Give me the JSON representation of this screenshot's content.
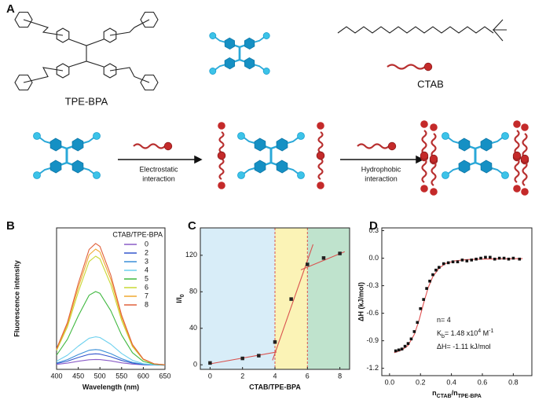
{
  "panel_a": {
    "label": "A",
    "molecule": "TPE-BPA",
    "surfactant": "CTAB",
    "step1": [
      "Electrostatic",
      "interaction"
    ],
    "step2": [
      "Hydrophobic",
      "interaction"
    ]
  },
  "chart_data": [
    {
      "type": "line",
      "panel": "B",
      "xlabel": "Wavelength (nm)",
      "ylabel": "Fluorescence intensity",
      "legend_title": "CTAB/TPE-BPA",
      "x": [
        400,
        425,
        450,
        475,
        490,
        500,
        525,
        550,
        575,
        600,
        625,
        650
      ],
      "series": [
        {
          "name": "0",
          "color": "#8a5cc7",
          "values": [
            3.5,
            4.4,
            5.7,
            6.8,
            7,
            6.9,
            6,
            4.6,
            3.7,
            3.2,
            3,
            3
          ]
        },
        {
          "name": "2",
          "color": "#3355cc",
          "values": [
            4.1,
            5.8,
            8.4,
            10.6,
            11,
            10.8,
            8.9,
            6.3,
            4.4,
            3.4,
            3.1,
            3
          ]
        },
        {
          "name": "3",
          "color": "#3a8fd8",
          "values": [
            4.5,
            6.9,
            10.4,
            13.5,
            14,
            13.7,
            11.1,
            7.5,
            4.9,
            3.6,
            3.1,
            3
          ]
        },
        {
          "name": "4",
          "color": "#6cd0ee",
          "values": [
            5.7,
            10,
            16.4,
            22,
            23,
            22.5,
            17.8,
            11.2,
            6.4,
            4,
            3.2,
            3
          ]
        },
        {
          "name": "5",
          "color": "#3fb83f",
          "values": [
            10,
            21.2,
            37.8,
            52.4,
            55,
            53.7,
            41.5,
            24.3,
            11.8,
            5.6,
            3.6,
            3.1
          ]
        },
        {
          "name": "6",
          "color": "#c8d834",
          "values": [
            13.4,
            30,
            54.6,
            76.2,
            80,
            78.1,
            60,
            34.6,
            16.1,
            6.9,
            3.8,
            3.2
          ]
        },
        {
          "name": "7",
          "color": "#f0a830",
          "values": [
            14.1,
            31.7,
            57.9,
            80.9,
            85,
            83,
            63.7,
            36.6,
            16.9,
            7.1,
            3.9,
            3.2
          ]
        },
        {
          "name": "8",
          "color": "#e0603a",
          "values": [
            14.6,
            33.1,
            60.6,
            84.7,
            89,
            86.9,
            66.6,
            38.3,
            17.6,
            7.3,
            3.9,
            3.2
          ]
        }
      ],
      "xlim": [
        400,
        650
      ],
      "xticks": [
        400,
        450,
        500,
        550,
        600,
        650
      ],
      "ylim": [
        0,
        100
      ]
    },
    {
      "type": "scatter",
      "panel": "C",
      "xlabel": "CTAB/TPE-BPA",
      "ylabel": [
        {
          "text": "I/I"
        },
        {
          "text": "0",
          "script": "sub"
        }
      ],
      "x": [
        0,
        2,
        3,
        4,
        5,
        6,
        7,
        8
      ],
      "values": [
        2,
        7,
        10,
        25,
        72,
        110,
        117,
        122
      ],
      "color": "#222222",
      "xlim": [
        -0.6,
        8.6
      ],
      "ylim": [
        -5,
        150
      ],
      "xticks": [
        0,
        2,
        4,
        6,
        8
      ],
      "yticks": [
        0,
        40,
        80,
        120
      ],
      "regions": [
        {
          "x": [
            -0.6,
            4
          ],
          "color": "#d8edf8"
        },
        {
          "x": [
            4,
            6
          ],
          "color": "#fbf3b6"
        },
        {
          "x": [
            6,
            8.6
          ],
          "color": "#bfe3cd"
        }
      ],
      "dividers": [
        4,
        6
      ],
      "fit_color": "#d9534f",
      "fits": [
        {
          "x": [
            0,
            4.1
          ],
          "values": [
            1,
            14
          ]
        },
        {
          "x": [
            3.85,
            6.35
          ],
          "values": [
            5,
            132
          ]
        },
        {
          "x": [
            5.6,
            8.3
          ],
          "values": [
            104,
            124
          ]
        }
      ]
    },
    {
      "type": "scatter",
      "panel": "D",
      "xlabel": [
        {
          "text": "n"
        },
        {
          "text": "CTAB",
          "script": "sub"
        },
        {
          "text": "/n"
        },
        {
          "text": "TPE-BPA",
          "script": "sub"
        }
      ],
      "ylabel": "ΔH (kJ/mol)",
      "x": [
        0.04,
        0.06,
        0.08,
        0.1,
        0.12,
        0.14,
        0.16,
        0.18,
        0.2,
        0.22,
        0.24,
        0.26,
        0.28,
        0.3,
        0.32,
        0.35,
        0.38,
        0.41,
        0.44,
        0.47,
        0.5,
        0.53,
        0.56,
        0.59,
        0.62,
        0.65,
        0.68,
        0.71,
        0.74,
        0.77,
        0.8,
        0.84
      ],
      "values": [
        -1.01,
        -1.0,
        -0.99,
        -0.96,
        -0.93,
        -0.88,
        -0.8,
        -0.7,
        -0.55,
        -0.45,
        -0.33,
        -0.25,
        -0.18,
        -0.13,
        -0.1,
        -0.06,
        -0.05,
        -0.04,
        -0.04,
        -0.02,
        -0.03,
        -0.02,
        -0.01,
        0.0,
        0.01,
        0.01,
        -0.01,
        0.0,
        0.0,
        -0.01,
        0.0,
        -0.01
      ],
      "color": "#111111",
      "fit_color": "#e05050",
      "fits": [
        {
          "x": [
            0.03,
            0.08,
            0.12,
            0.16,
            0.19,
            0.22,
            0.25,
            0.28,
            0.32,
            0.36,
            0.42,
            0.5,
            0.6,
            0.86
          ],
          "values": [
            -1.03,
            -1.0,
            -0.95,
            -0.83,
            -0.68,
            -0.49,
            -0.32,
            -0.2,
            -0.11,
            -0.06,
            -0.03,
            -0.015,
            -0.01,
            -0.005
          ]
        }
      ],
      "xlim": [
        -0.05,
        0.92
      ],
      "ylim": [
        -1.28,
        0.33
      ],
      "xticks": [
        {
          "value": 0,
          "label": "0.0"
        },
        0.2,
        0.4,
        0.6,
        0.8
      ],
      "yticks": [
        0.3,
        {
          "value": 0,
          "label": "0.0"
        },
        -0.3,
        -0.6,
        -0.9,
        -1.2
      ],
      "annotations": [
        [
          {
            "text": "n= 4"
          }
        ],
        [
          {
            "text": "K"
          },
          {
            "text": "b",
            "script": "sub"
          },
          {
            "text": "= 1.48 x10"
          },
          {
            "text": "4",
            "script": "super"
          },
          {
            "text": " M"
          },
          {
            "text": "-1",
            "script": "super"
          }
        ],
        [
          {
            "text": "ΔH= -1.11 kJ/mol"
          }
        ]
      ]
    }
  ]
}
